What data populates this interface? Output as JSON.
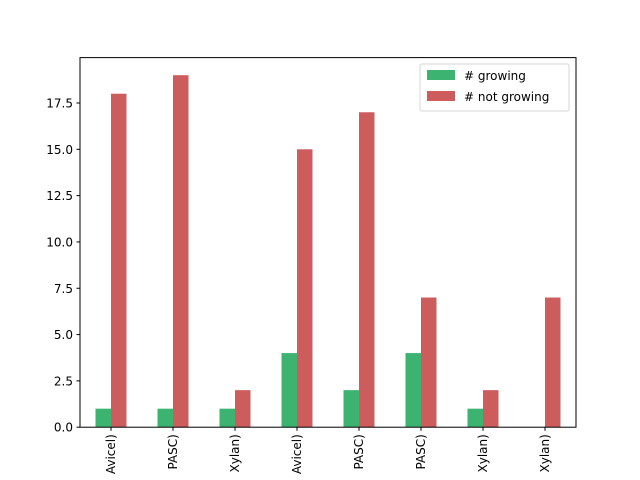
{
  "chart_data": {
    "type": "bar",
    "title": "",
    "xlabel": "",
    "ylabel": "",
    "categories": [
      "Avicel)",
      "PASC)",
      "Xylan)",
      "Avicel)",
      "PASC)",
      "PASC)",
      "Xylan)",
      "Xylan)"
    ],
    "series": [
      {
        "name": "# growing",
        "color": "#3cb371",
        "values": [
          1,
          1,
          1,
          4,
          2,
          4,
          1,
          0
        ]
      },
      {
        "name": "# not growing",
        "color": "#cd5c5c",
        "values": [
          18,
          19,
          2,
          15,
          17,
          7,
          2,
          7
        ]
      }
    ],
    "ylim": [
      0,
      19.95
    ],
    "yticks": [
      0.0,
      2.5,
      5.0,
      7.5,
      10.0,
      12.5,
      15.0,
      17.5
    ],
    "ytick_labels": [
      "0.0",
      "2.5",
      "5.0",
      "7.5",
      "10.0",
      "12.5",
      "15.0",
      "17.5"
    ],
    "grid": false,
    "legend_position": "top-right"
  }
}
